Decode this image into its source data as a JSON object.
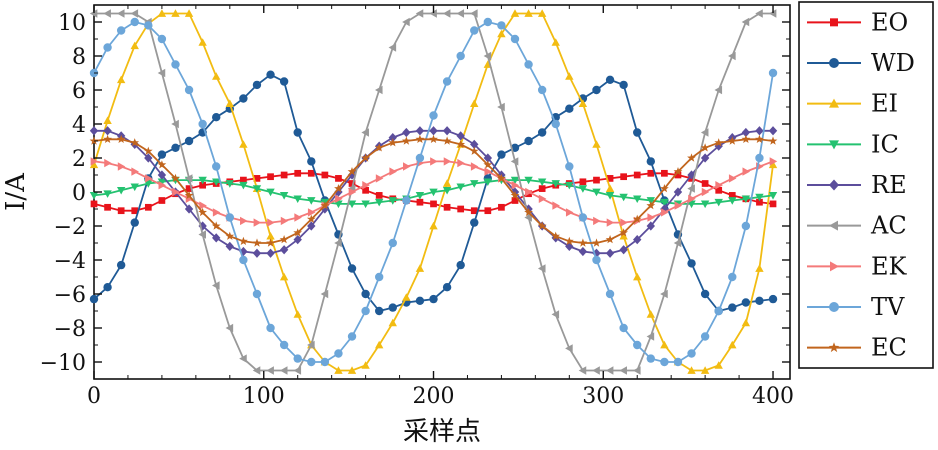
{
  "chart_data": {
    "type": "line",
    "xlabel": "采样点",
    "ylabel": "I/A",
    "xlim": [
      0,
      410
    ],
    "ylim": [
      -11,
      11
    ],
    "x_ticks": [
      "0",
      "100",
      "200",
      "300",
      "400"
    ],
    "y_ticks": [
      "−10",
      "−8",
      "−6",
      "−4",
      "−2",
      "0",
      "2",
      "4",
      "6",
      "8",
      "10"
    ],
    "x_tick_values": [
      0,
      100,
      200,
      300,
      400
    ],
    "y_tick_values": [
      -10,
      -8,
      -6,
      -4,
      -2,
      0,
      2,
      4,
      6,
      8,
      10
    ],
    "grid": false,
    "legend_position": "right",
    "x": [
      0,
      8,
      16,
      24,
      32,
      40,
      48,
      56,
      64,
      72,
      80,
      88,
      96,
      104,
      112,
      120,
      128,
      136,
      144,
      152,
      160,
      168,
      176,
      184,
      192,
      200,
      208,
      216,
      224,
      232,
      240,
      248,
      256,
      264,
      272,
      280,
      288,
      296,
      304,
      312,
      320,
      328,
      336,
      344,
      352,
      360,
      368,
      376,
      384,
      392,
      400
    ],
    "series": [
      {
        "name": "EO",
        "color": "#e8131b",
        "marker": "square",
        "values": [
          -0.7,
          -0.9,
          -1.1,
          -1.1,
          -0.9,
          -0.5,
          -0.1,
          0.2,
          0.4,
          0.5,
          0.6,
          0.7,
          0.8,
          0.9,
          1.0,
          1.1,
          1.1,
          1.0,
          0.8,
          0.5,
          0.1,
          -0.2,
          -0.4,
          -0.5,
          -0.6,
          -0.7,
          -0.9,
          -1.0,
          -1.1,
          -1.1,
          -0.9,
          -0.5,
          -0.1,
          0.2,
          0.4,
          0.5,
          0.6,
          0.7,
          0.8,
          0.9,
          1.0,
          1.1,
          1.1,
          1.0,
          0.8,
          0.5,
          0.1,
          -0.2,
          -0.4,
          -0.6,
          -0.7
        ]
      },
      {
        "name": "WD",
        "color": "#1f5a96",
        "marker": "circle",
        "values": [
          -6.3,
          -5.6,
          -4.3,
          -1.8,
          0.8,
          2.2,
          2.6,
          3.0,
          3.5,
          4.4,
          4.9,
          5.5,
          6.3,
          6.9,
          6.5,
          3.5,
          1.8,
          -0.5,
          -2.5,
          -4.5,
          -6.0,
          -7.0,
          -6.8,
          -6.5,
          -6.4,
          -6.3,
          -5.6,
          -4.3,
          -1.8,
          0.8,
          2.2,
          2.6,
          3.0,
          3.5,
          4.4,
          4.9,
          5.5,
          6.0,
          6.6,
          6.3,
          3.5,
          1.8,
          -0.5,
          -2.5,
          -4.2,
          -6.0,
          -7.0,
          -6.8,
          -6.5,
          -6.4,
          -6.3
        ]
      },
      {
        "name": "EI",
        "color": "#f2bc12",
        "marker": "triangle-up",
        "values": [
          1.6,
          4.2,
          6.6,
          8.6,
          9.9,
          10.5,
          10.5,
          10.5,
          8.8,
          6.8,
          5.2,
          2.8,
          0.2,
          -2.6,
          -5.0,
          -7.2,
          -9.0,
          -10.0,
          -10.5,
          -10.5,
          -10.2,
          -9.0,
          -7.7,
          -6.2,
          -4.5,
          -2.0,
          0.5,
          2.8,
          5.2,
          7.5,
          9.3,
          10.5,
          10.5,
          10.5,
          8.8,
          6.8,
          5.2,
          2.8,
          0.2,
          -2.6,
          -5.0,
          -7.2,
          -9.0,
          -10.0,
          -10.5,
          -10.5,
          -10.2,
          -9.0,
          -7.7,
          -4.5,
          1.6
        ]
      },
      {
        "name": "IC",
        "color": "#24c270",
        "marker": "triangle-down",
        "values": [
          -0.2,
          -0.1,
          0.1,
          0.3,
          0.5,
          0.6,
          0.7,
          0.7,
          0.7,
          0.6,
          0.5,
          0.4,
          0.2,
          0.0,
          -0.2,
          -0.4,
          -0.5,
          -0.6,
          -0.7,
          -0.7,
          -0.7,
          -0.6,
          -0.5,
          -0.4,
          -0.2,
          0.0,
          0.1,
          0.3,
          0.5,
          0.6,
          0.7,
          0.7,
          0.7,
          0.6,
          0.5,
          0.4,
          0.2,
          0.0,
          -0.2,
          -0.3,
          -0.4,
          -0.5,
          -0.6,
          -0.7,
          -0.7,
          -0.7,
          -0.6,
          -0.5,
          -0.4,
          -0.3,
          -0.2
        ]
      },
      {
        "name": "RE",
        "color": "#5c4e9c",
        "marker": "diamond",
        "values": [
          3.6,
          3.6,
          3.3,
          2.8,
          2.0,
          1.0,
          0.0,
          -1.0,
          -2.0,
          -2.7,
          -3.2,
          -3.5,
          -3.6,
          -3.6,
          -3.4,
          -2.8,
          -2.0,
          -1.0,
          0.0,
          1.0,
          2.0,
          2.7,
          3.2,
          3.5,
          3.6,
          3.6,
          3.6,
          3.3,
          2.8,
          2.0,
          1.0,
          0.0,
          -1.0,
          -2.0,
          -2.7,
          -3.2,
          -3.5,
          -3.6,
          -3.6,
          -3.4,
          -2.8,
          -2.0,
          -1.0,
          0.0,
          1.0,
          2.0,
          2.7,
          3.2,
          3.5,
          3.6,
          3.6
        ]
      },
      {
        "name": "AC",
        "color": "#999999",
        "marker": "triangle-left",
        "values": [
          10.5,
          10.5,
          10.5,
          10.5,
          10.0,
          7.0,
          4.0,
          0.8,
          -2.5,
          -5.5,
          -8.0,
          -9.8,
          -10.5,
          -10.5,
          -10.5,
          -10.5,
          -9.0,
          -6.0,
          -3.0,
          0.2,
          3.5,
          6.0,
          8.5,
          10.0,
          10.5,
          10.5,
          10.5,
          10.5,
          10.5,
          8.0,
          5.0,
          1.8,
          -1.5,
          -4.5,
          -7.2,
          -9.2,
          -10.5,
          -10.5,
          -10.5,
          -10.5,
          -10.5,
          -8.5,
          -6.0,
          -3.0,
          0.2,
          3.5,
          6.0,
          8.0,
          10.0,
          10.5,
          10.5
        ]
      },
      {
        "name": "EK",
        "color": "#f47a7a",
        "marker": "triangle-right",
        "values": [
          1.8,
          1.7,
          1.5,
          1.2,
          0.8,
          0.4,
          0.0,
          -0.4,
          -0.8,
          -1.2,
          -1.5,
          -1.7,
          -1.8,
          -1.8,
          -1.7,
          -1.5,
          -1.2,
          -0.8,
          -0.4,
          0.0,
          0.4,
          0.8,
          1.2,
          1.5,
          1.7,
          1.8,
          1.8,
          1.7,
          1.5,
          1.2,
          0.8,
          0.4,
          0.0,
          -0.4,
          -0.8,
          -1.2,
          -1.5,
          -1.7,
          -1.8,
          -1.8,
          -1.7,
          -1.5,
          -1.2,
          -0.8,
          -0.4,
          0.0,
          0.4,
          0.8,
          1.2,
          1.5,
          1.8
        ]
      },
      {
        "name": "TV",
        "color": "#6ca6d9",
        "marker": "circle",
        "values": [
          7.0,
          8.5,
          9.5,
          10.0,
          9.8,
          9.0,
          7.5,
          6.0,
          4.0,
          1.5,
          -1.5,
          -4.0,
          -6.0,
          -8.0,
          -9.0,
          -9.8,
          -10.0,
          -10.0,
          -9.5,
          -8.5,
          -7.0,
          -5.0,
          -3.0,
          -0.5,
          2.0,
          4.5,
          6.5,
          8.0,
          9.5,
          10.0,
          9.8,
          9.0,
          7.5,
          6.0,
          4.0,
          1.5,
          -1.5,
          -4.0,
          -6.0,
          -8.0,
          -9.0,
          -9.8,
          -10.0,
          -10.0,
          -9.5,
          -8.5,
          -7.0,
          -5.0,
          -2.0,
          2.0,
          7.0
        ]
      },
      {
        "name": "EC",
        "color": "#c1651d",
        "marker": "star",
        "values": [
          3.0,
          3.1,
          3.1,
          2.9,
          2.4,
          1.6,
          0.8,
          -0.2,
          -1.2,
          -2.0,
          -2.6,
          -2.9,
          -3.0,
          -3.0,
          -2.8,
          -2.4,
          -1.6,
          -0.8,
          0.2,
          1.2,
          2.0,
          2.6,
          2.9,
          3.0,
          3.1,
          3.1,
          3.0,
          2.8,
          2.4,
          1.6,
          0.8,
          -0.2,
          -1.2,
          -2.0,
          -2.6,
          -2.9,
          -3.0,
          -3.0,
          -2.8,
          -2.4,
          -1.6,
          -0.8,
          0.2,
          1.2,
          2.0,
          2.6,
          2.9,
          3.0,
          3.1,
          3.1,
          3.0
        ]
      }
    ]
  }
}
